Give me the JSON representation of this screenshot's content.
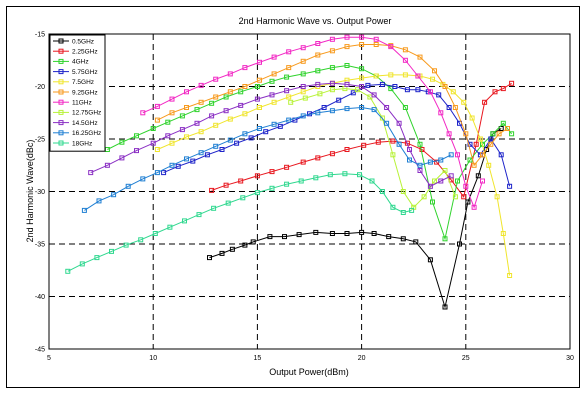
{
  "chart_data": {
    "type": "line",
    "title": "2nd Harmonic Wave vs. Output Power",
    "xlabel": "Output Power(dBm)",
    "ylabel": "2nd Harmonic Wave(dBc)",
    "xlim": [
      5,
      30
    ],
    "ylim": [
      -45,
      -15
    ],
    "xticks": [
      5,
      10,
      15,
      20,
      25,
      30
    ],
    "yticks": [
      -45,
      -40,
      -35,
      -30,
      -25,
      -20,
      -15
    ],
    "grid": true,
    "legend_position": "top-left",
    "series": [
      {
        "name": "0.5GHz",
        "color": "#000000",
        "x": [
          12.7,
          13.3,
          13.8,
          14.4,
          14.8,
          15.6,
          16.3,
          17.0,
          17.8,
          18.6,
          19.3,
          20.0,
          20.6,
          21.3,
          22.0,
          22.6,
          23.3,
          24.0,
          24.7,
          25.1,
          25.6,
          26.0,
          26.3,
          26.7
        ],
        "y": [
          -36.3,
          -35.9,
          -35.5,
          -35.1,
          -34.8,
          -34.3,
          -34.3,
          -34.1,
          -33.9,
          -34.0,
          -34.0,
          -33.9,
          -34.0,
          -34.3,
          -34.5,
          -34.8,
          -36.5,
          -41.0,
          -35.0,
          -31.0,
          -28.5,
          -26.0,
          -24.5,
          -24.0
        ]
      },
      {
        "name": "2.25GHz",
        "color": "#e8171f",
        "x": [
          12.8,
          13.5,
          14.2,
          15.0,
          15.7,
          16.4,
          17.2,
          17.9,
          18.6,
          19.3,
          20.1,
          20.8,
          21.5,
          22.2,
          22.9,
          23.6,
          24.3,
          24.9,
          25.5,
          25.9,
          26.4,
          26.8,
          27.2
        ],
        "y": [
          -29.9,
          -29.4,
          -29.0,
          -28.5,
          -28.1,
          -27.7,
          -27.2,
          -26.8,
          -26.4,
          -26.0,
          -25.6,
          -25.3,
          -25.2,
          -25.4,
          -26.0,
          -27.2,
          -28.9,
          -30.5,
          -25.5,
          -21.5,
          -20.5,
          -20.2,
          -19.7
        ]
      },
      {
        "name": "4GHz",
        "color": "#2fd32c",
        "x": [
          7.8,
          8.5,
          9.2,
          10.0,
          10.7,
          11.4,
          12.1,
          12.8,
          13.5,
          14.2,
          15.0,
          15.7,
          16.4,
          17.2,
          17.9,
          18.6,
          19.3,
          20.0,
          20.7,
          21.4,
          22.1,
          22.8,
          23.4,
          24.0,
          24.6,
          25.2,
          25.8,
          26.3,
          26.8,
          27.2
        ],
        "y": [
          -26.0,
          -25.3,
          -24.7,
          -24.0,
          -23.4,
          -22.8,
          -22.2,
          -21.6,
          -21.0,
          -20.5,
          -20.0,
          -19.5,
          -19.1,
          -18.8,
          -18.5,
          -18.2,
          -18.0,
          -18.3,
          -19.0,
          -20.2,
          -22.0,
          -25.5,
          -31.0,
          -34.5,
          -29.0,
          -27.0,
          -25.5,
          -24.5,
          -23.5,
          -24.5
        ]
      },
      {
        "name": "5.75GHz",
        "color": "#1d23c9",
        "x": [
          10.5,
          11.2,
          11.9,
          12.6,
          13.3,
          14.0,
          14.7,
          15.4,
          16.1,
          16.8,
          17.5,
          18.2,
          18.9,
          19.6,
          20.3,
          21.0,
          21.6,
          22.2,
          22.7,
          23.2,
          23.7,
          24.2,
          24.7,
          25.2,
          25.7,
          26.2,
          26.7,
          27.1
        ],
        "y": [
          -28.2,
          -27.6,
          -27.1,
          -26.5,
          -26.0,
          -25.4,
          -24.9,
          -24.3,
          -23.8,
          -23.2,
          -22.6,
          -22.0,
          -21.3,
          -20.6,
          -19.9,
          -19.8,
          -20.0,
          -20.3,
          -20.3,
          -20.5,
          -20.8,
          -22.0,
          -23.5,
          -25.5,
          -26.5,
          -25.0,
          -26.5,
          -29.5
        ]
      },
      {
        "name": "7.5GHz",
        "color": "#f0e52c",
        "x": [
          10.2,
          10.9,
          11.6,
          12.3,
          13.0,
          13.7,
          14.4,
          15.1,
          15.8,
          16.5,
          17.2,
          17.9,
          18.6,
          19.3,
          20.0,
          20.7,
          21.4,
          22.1,
          22.8,
          23.4,
          23.9,
          24.4,
          24.9,
          25.3,
          25.7,
          26.1,
          26.5,
          26.8,
          27.1
        ],
        "y": [
          -26.0,
          -25.4,
          -24.8,
          -24.3,
          -23.7,
          -23.1,
          -22.6,
          -22.0,
          -21.5,
          -21.0,
          -20.5,
          -20.0,
          -19.7,
          -19.4,
          -19.2,
          -19.0,
          -18.9,
          -18.9,
          -19.0,
          -19.3,
          -19.8,
          -20.5,
          -21.5,
          -23.0,
          -25.0,
          -27.5,
          -30.5,
          -34.0,
          -38.0
        ]
      },
      {
        "name": "9.25GHz",
        "color": "#f79a1d",
        "x": [
          10.2,
          10.9,
          11.6,
          12.3,
          13.0,
          13.7,
          14.4,
          15.1,
          15.8,
          16.5,
          17.2,
          17.9,
          18.6,
          19.3,
          20.0,
          20.7,
          21.4,
          22.1,
          22.8,
          23.5,
          24.0,
          24.5,
          25.0,
          25.4,
          25.8,
          26.2,
          26.6,
          27.0
        ],
        "y": [
          -23.2,
          -22.5,
          -22.0,
          -21.5,
          -21.0,
          -20.5,
          -20.0,
          -19.4,
          -18.8,
          -18.2,
          -17.6,
          -17.0,
          -16.6,
          -16.2,
          -16.0,
          -16.0,
          -16.1,
          -16.5,
          -17.2,
          -18.5,
          -20.0,
          -22.0,
          -24.5,
          -27.5,
          -26.5,
          -25.5,
          -24.5,
          -24.0
        ]
      },
      {
        "name": "11GHz",
        "color": "#f228c4",
        "x": [
          9.5,
          10.2,
          10.9,
          11.6,
          12.3,
          13.0,
          13.7,
          14.4,
          15.1,
          15.8,
          16.5,
          17.2,
          17.9,
          18.6,
          19.3,
          20.0,
          20.7,
          21.4,
          22.1,
          22.7,
          23.3,
          23.8,
          24.2,
          24.6,
          25.0,
          25.4,
          25.8
        ],
        "y": [
          -22.5,
          -21.9,
          -21.2,
          -20.5,
          -19.9,
          -19.3,
          -18.8,
          -18.2,
          -17.7,
          -17.2,
          -16.7,
          -16.3,
          -15.9,
          -15.5,
          -15.3,
          -15.3,
          -15.5,
          -16.2,
          -17.5,
          -19.0,
          -20.5,
          -22.5,
          -24.5,
          -26.5,
          -29.5,
          -31.5,
          -29.0
        ]
      },
      {
        "name": "12.75GHz",
        "color": "#b8f238",
        "x": [
          16.6,
          17.3,
          18.0,
          18.6,
          19.2,
          19.8,
          20.4,
          21.0,
          21.5,
          22.0,
          22.5,
          23.0,
          23.5,
          24.0,
          24.5
        ],
        "y": [
          -21.5,
          -21.1,
          -20.7,
          -20.3,
          -20.2,
          -20.3,
          -21.0,
          -23.0,
          -26.5,
          -30.0,
          -31.5,
          -30.5,
          -29.0,
          -28.0,
          -30.5
        ]
      },
      {
        "name": "14.5GHz",
        "color": "#8a2fc4",
        "x": [
          7.0,
          7.8,
          8.5,
          9.2,
          10.0,
          10.7,
          11.4,
          12.1,
          12.8,
          13.5,
          14.2,
          15.0,
          15.7,
          16.4,
          17.2,
          17.9,
          18.6,
          19.3,
          20.0,
          20.6,
          21.2,
          21.8,
          22.3,
          22.8,
          23.3,
          23.8,
          24.3
        ],
        "y": [
          -28.2,
          -27.5,
          -26.8,
          -26.1,
          -25.4,
          -24.7,
          -24.1,
          -23.5,
          -22.8,
          -22.3,
          -21.8,
          -21.2,
          -20.8,
          -20.4,
          -20.0,
          -19.8,
          -19.7,
          -19.8,
          -20.0,
          -20.8,
          -22.0,
          -23.5,
          -26.0,
          -28.0,
          -29.5,
          -29.0,
          -28.5
        ]
      },
      {
        "name": "16.25GHz",
        "color": "#1f7fd3",
        "x": [
          6.7,
          7.4,
          8.1,
          8.8,
          9.5,
          10.2,
          10.9,
          11.6,
          12.3,
          13.0,
          13.7,
          14.4,
          15.1,
          15.8,
          16.5,
          17.2,
          17.9,
          18.6,
          19.3,
          20.0,
          20.6,
          21.2,
          21.8,
          22.3,
          22.8,
          23.3,
          23.8,
          24.3
        ],
        "y": [
          -31.8,
          -30.9,
          -30.3,
          -29.5,
          -28.8,
          -28.2,
          -27.5,
          -26.9,
          -26.3,
          -25.7,
          -25.1,
          -24.5,
          -24.0,
          -23.6,
          -23.2,
          -22.8,
          -22.5,
          -22.3,
          -22.1,
          -22.0,
          -22.2,
          -23.5,
          -25.5,
          -27.0,
          -27.5,
          -27.2,
          -27.0,
          -26.5
        ]
      },
      {
        "name": "18GHz",
        "color": "#2fd88f",
        "x": [
          5.9,
          6.6,
          7.3,
          8.0,
          8.7,
          9.4,
          10.1,
          10.8,
          11.5,
          12.2,
          12.9,
          13.6,
          14.3,
          15.0,
          15.7,
          16.4,
          17.1,
          17.8,
          18.5,
          19.2,
          19.9,
          20.5,
          21.0,
          21.5,
          22.0,
          22.4
        ],
        "y": [
          -37.6,
          -36.9,
          -36.3,
          -35.7,
          -35.1,
          -34.6,
          -34.0,
          -33.4,
          -32.8,
          -32.2,
          -31.6,
          -31.1,
          -30.6,
          -30.1,
          -29.7,
          -29.3,
          -29.0,
          -28.7,
          -28.4,
          -28.3,
          -28.4,
          -29.0,
          -30.0,
          -31.5,
          -32.0,
          -31.8
        ]
      }
    ]
  }
}
